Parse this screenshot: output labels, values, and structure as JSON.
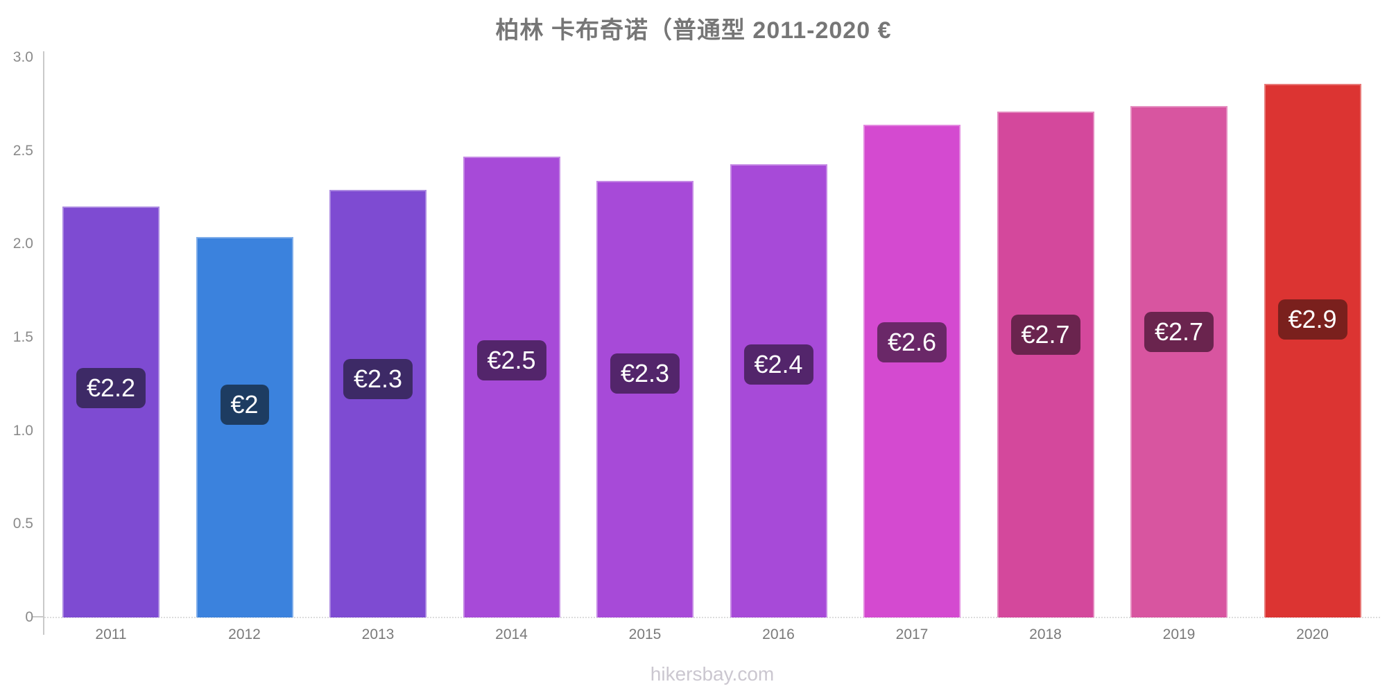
{
  "title": "柏林 卡布奇诺（普通型 2011-2020 €",
  "watermark": "hikersbay.com",
  "colors": {
    "title_text": "#767676",
    "axis_line": "#c9c9c9",
    "baseline_dotted": "#dcdcdc",
    "ytick_text": "#8a8a8a",
    "xtick_text": "#7a7a7a",
    "badge_text": "#ffffff",
    "watermark_text": "#cbc7d0"
  },
  "chart_data": {
    "type": "bar",
    "title": "柏林 卡布奇诺（普通型 2011-2020 €",
    "xlabel": "",
    "ylabel": "",
    "ylim": [
      0,
      3.0
    ],
    "ytick_labels": [
      "3.0",
      "2.5",
      "2.0",
      "1.5",
      "1.0",
      "0.5",
      "0"
    ],
    "grid": false,
    "legend_position": "none",
    "categories": [
      "2011",
      "2012",
      "2013",
      "2014",
      "2015",
      "2016",
      "2017",
      "2018",
      "2019",
      "2020"
    ],
    "values": [
      2.2,
      2.04,
      2.29,
      2.47,
      2.34,
      2.43,
      2.64,
      2.71,
      2.74,
      2.86
    ],
    "bar_labels": [
      "€2.2",
      "€2",
      "€2.3",
      "€2.5",
      "€2.3",
      "€2.4",
      "€2.6",
      "€2.7",
      "€2.7",
      "€2.9"
    ],
    "bar_colors": [
      "#7e4bd2",
      "#3b82dd",
      "#7e4bd2",
      "#a74ad8",
      "#a74ad8",
      "#a74ad8",
      "#d44ad0",
      "#d4489c",
      "#d855a0",
      "#dc3432"
    ],
    "badge_colors": [
      "#3d2a66",
      "#1d3c61",
      "#3d2a66",
      "#53256b",
      "#53256b",
      "#53256b",
      "#6a2868",
      "#6a244e",
      "#6a244e",
      "#7a201d"
    ]
  }
}
